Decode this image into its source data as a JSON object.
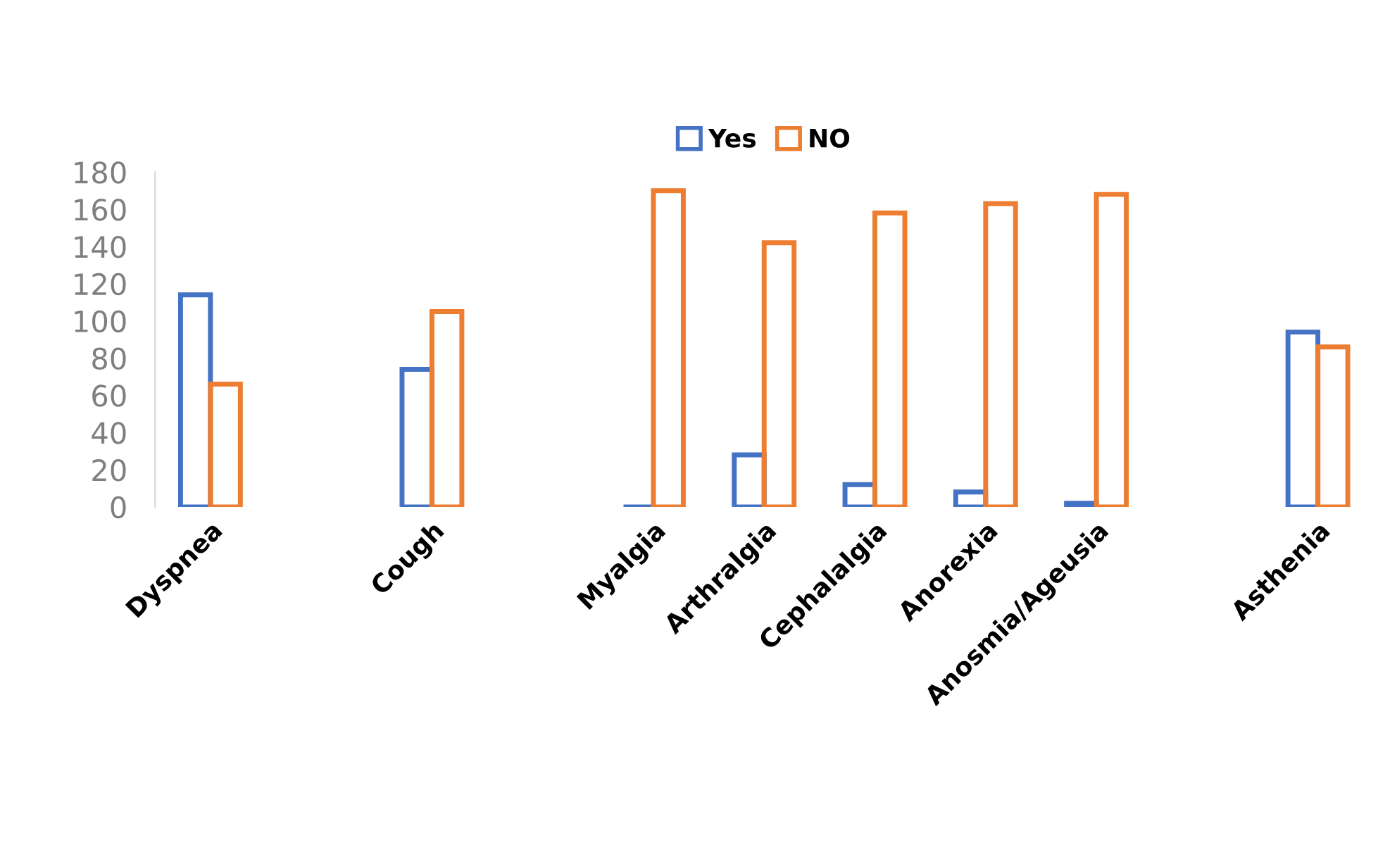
{
  "chart_data": {
    "type": "bar",
    "categories": [
      "Dyspnea",
      null,
      "Cough",
      null,
      "Myalgia",
      "Arthralgia",
      "Cephalalgia",
      "Anorexia",
      "Anosmia/Ageusia",
      null,
      "Asthenia"
    ],
    "series": [
      {
        "name": "Yes",
        "color": "#4472c4",
        "values": [
          114,
          null,
          74,
          null,
          0,
          28,
          12,
          8,
          2,
          null,
          94
        ]
      },
      {
        "name": "NO",
        "color": "#ed7d31",
        "values": [
          66,
          null,
          105,
          null,
          170,
          142,
          158,
          163,
          168,
          null,
          86
        ]
      }
    ],
    "ylim": [
      0,
      180
    ],
    "yticks": [
      0,
      20,
      40,
      60,
      80,
      100,
      120,
      140,
      160,
      180
    ],
    "legend": "top",
    "grid": false
  }
}
